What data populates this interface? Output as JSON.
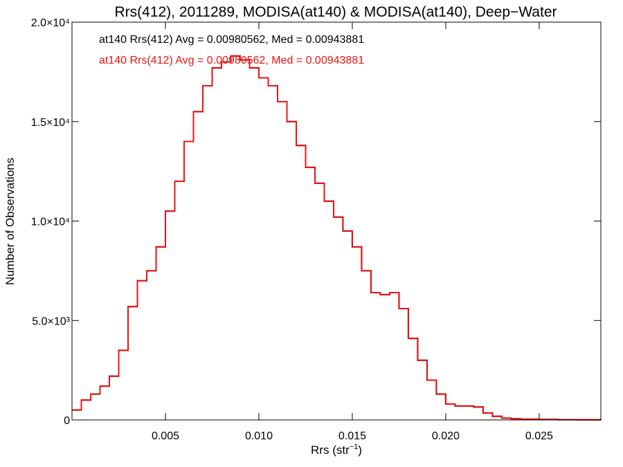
{
  "chart_data": {
    "type": "line",
    "title": "Rrs(412), 2011289, MODISA(at140) & MODISA(at140), Deep−Water",
    "xlabel": "Rrs (str⁻¹)",
    "ylabel": "Number of Observations",
    "xlim": [
      0.0,
      0.0283
    ],
    "ylim": [
      0,
      20000
    ],
    "x_ticks": [
      {
        "value": 0.005,
        "label": "0.005"
      },
      {
        "value": 0.01,
        "label": "0.010"
      },
      {
        "value": 0.015,
        "label": "0.015"
      },
      {
        "value": 0.02,
        "label": "0.020"
      },
      {
        "value": 0.025,
        "label": "0.025"
      }
    ],
    "y_ticks": [
      {
        "value": 0,
        "label": "0"
      },
      {
        "value": 5000,
        "label": "5.0×10³"
      },
      {
        "value": 10000,
        "label": "1.0×10⁴"
      },
      {
        "value": 15000,
        "label": "1.5×10⁴"
      },
      {
        "value": 20000,
        "label": "2.0×10⁴"
      }
    ],
    "grid": false,
    "legend": "top-left",
    "annotations": [
      {
        "text": "at140 Rrs(412) Avg = 0.00980562, Med = 0.00943881",
        "color": "#000000"
      },
      {
        "text": "at140 Rrs(412) Avg = 0.00980562, Med = 0.00943881",
        "color": "#ee1111"
      }
    ],
    "series": [
      {
        "color": "#000000",
        "x": [
          0.0,
          0.0005,
          0.001,
          0.0015,
          0.002,
          0.0025,
          0.003,
          0.0035,
          0.004,
          0.0045,
          0.005,
          0.0055,
          0.006,
          0.0065,
          0.007,
          0.0075,
          0.008,
          0.0085,
          0.009,
          0.0095,
          0.01,
          0.0105,
          0.011,
          0.0115,
          0.012,
          0.0125,
          0.013,
          0.0135,
          0.014,
          0.0145,
          0.015,
          0.0155,
          0.016,
          0.0165,
          0.017,
          0.0175,
          0.018,
          0.0185,
          0.019,
          0.0195,
          0.02,
          0.0205,
          0.021,
          0.0215,
          0.022,
          0.0225,
          0.023,
          0.0235,
          0.024,
          0.025,
          0.026,
          0.027,
          0.0283
        ],
        "y": [
          500,
          1000,
          1300,
          1700,
          2200,
          3500,
          5700,
          7000,
          7500,
          8700,
          10500,
          12000,
          14000,
          15500,
          16800,
          17700,
          18000,
          18300,
          18100,
          17700,
          17200,
          16800,
          16000,
          15000,
          13800,
          12700,
          11900,
          11000,
          10200,
          9500,
          8700,
          7500,
          6400,
          6300,
          6400,
          5600,
          4100,
          3000,
          2000,
          1300,
          800,
          700,
          700,
          650,
          350,
          180,
          90,
          60,
          40,
          25,
          15,
          10,
          5
        ]
      },
      {
        "color": "#ee1111",
        "x": [
          0.0,
          0.0005,
          0.001,
          0.0015,
          0.002,
          0.0025,
          0.003,
          0.0035,
          0.004,
          0.0045,
          0.005,
          0.0055,
          0.006,
          0.0065,
          0.007,
          0.0075,
          0.008,
          0.0085,
          0.009,
          0.0095,
          0.01,
          0.0105,
          0.011,
          0.0115,
          0.012,
          0.0125,
          0.013,
          0.0135,
          0.014,
          0.0145,
          0.015,
          0.0155,
          0.016,
          0.0165,
          0.017,
          0.0175,
          0.018,
          0.0185,
          0.019,
          0.0195,
          0.02,
          0.0205,
          0.021,
          0.0215,
          0.022,
          0.0225,
          0.023,
          0.0235,
          0.024,
          0.025,
          0.026,
          0.027,
          0.0283
        ],
        "y": [
          500,
          1000,
          1300,
          1700,
          2200,
          3500,
          5700,
          7000,
          7500,
          8700,
          10500,
          12000,
          14000,
          15500,
          16800,
          17700,
          18000,
          18300,
          18100,
          17700,
          17200,
          16800,
          16000,
          15000,
          13800,
          12700,
          11900,
          11000,
          10200,
          9500,
          8700,
          7500,
          6400,
          6300,
          6400,
          5600,
          4100,
          3000,
          2000,
          1300,
          800,
          700,
          700,
          650,
          350,
          180,
          90,
          60,
          40,
          25,
          15,
          10,
          5
        ]
      }
    ]
  }
}
